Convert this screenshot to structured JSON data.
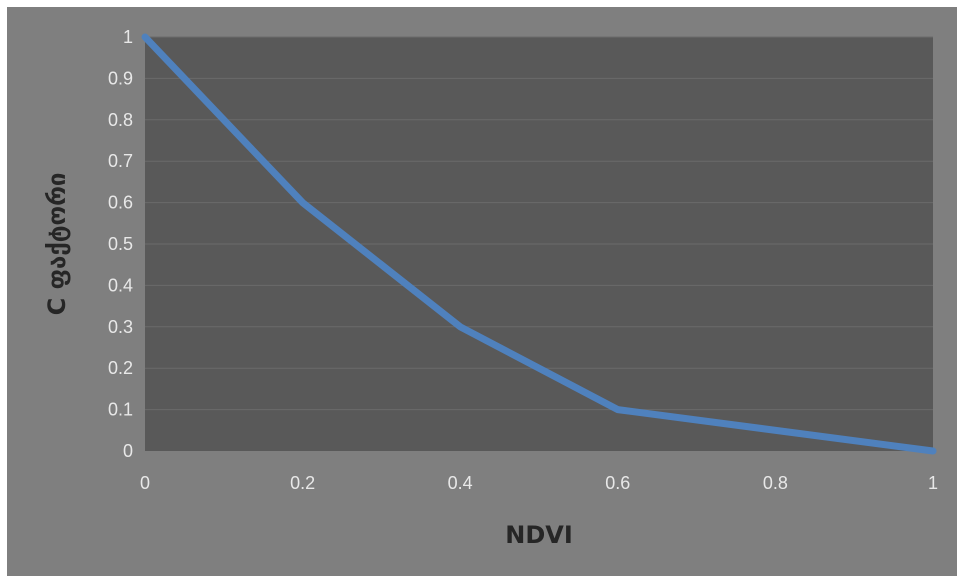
{
  "chart_data": {
    "type": "line",
    "title": "",
    "xlabel": "NDVI",
    "ylabel": "C ფაქტორი",
    "x": [
      0,
      0.2,
      0.4,
      0.6,
      1
    ],
    "series": [
      {
        "values": [
          1,
          0.6,
          0.3,
          0.1,
          0
        ]
      }
    ],
    "xlim": [
      0,
      1
    ],
    "ylim": [
      0,
      1
    ],
    "x_ticks": [
      "0",
      "0.2",
      "0.4",
      "0.6",
      "0.8",
      "1"
    ],
    "y_ticks": [
      "0",
      "0.1",
      "0.2",
      "0.3",
      "0.4",
      "0.5",
      "0.6",
      "0.7",
      "0.8",
      "0.9",
      "1"
    ],
    "grid": "horizontal",
    "legend": "none",
    "colors": {
      "outer_background": "#7f7f7f",
      "plot_background": "#595959",
      "gridline": "#6b6b6b",
      "line": "#4f81bd",
      "tick_text": "#e8e8e8",
      "axis_title": "#262626"
    }
  }
}
